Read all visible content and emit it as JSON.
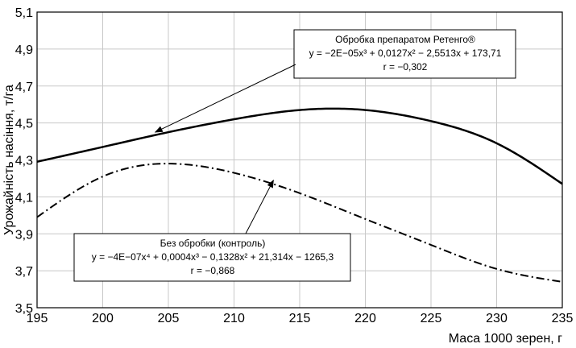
{
  "chart_data": {
    "type": "line",
    "xlabel": "Маса 1000 зерен, г",
    "ylabel": "Урожайність насіння, т/га",
    "xlim": [
      195,
      235
    ],
    "ylim": [
      3.5,
      5.1
    ],
    "x_ticks": [
      "195",
      "200",
      "205",
      "210",
      "215",
      "220",
      "225",
      "230",
      "235"
    ],
    "y_ticks": [
      "3,5",
      "3,7",
      "3,9",
      "4,1",
      "4,3",
      "4,5",
      "4,7",
      "4,9",
      "5,1"
    ],
    "grid": true,
    "series": [
      {
        "name": "Обробка препаратом Ретенго®",
        "style": "solid",
        "x": [
          195,
          200,
          205,
          210,
          215,
          220,
          225,
          230,
          235
        ],
        "y": [
          4.29,
          4.37,
          4.45,
          4.52,
          4.57,
          4.57,
          4.51,
          4.39,
          4.17
        ]
      },
      {
        "name": "Без обробки (контроль)",
        "style": "dash-dot",
        "x": [
          195,
          200,
          205,
          210,
          215,
          220,
          225,
          230,
          235
        ],
        "y": [
          3.99,
          4.21,
          4.28,
          4.23,
          4.12,
          3.98,
          3.84,
          3.71,
          3.64
        ]
      }
    ],
    "annotations": [
      {
        "series": 0,
        "lines": [
          "Обробка препаратом Ретенго®",
          "y = −2E−05x³ + 0,0127x² − 2,5513x + 173,71",
          "r = −0,302"
        ],
        "arrow_to": [
          204,
          4.45
        ]
      },
      {
        "series": 1,
        "lines": [
          "Без обробки (контроль)",
          "y = −4E−07x⁴ + 0,0004x³ − 0,1328x² + 21,314x − 1265,3",
          "r = −0,868"
        ],
        "arrow_to": [
          213,
          4.19
        ]
      }
    ]
  }
}
